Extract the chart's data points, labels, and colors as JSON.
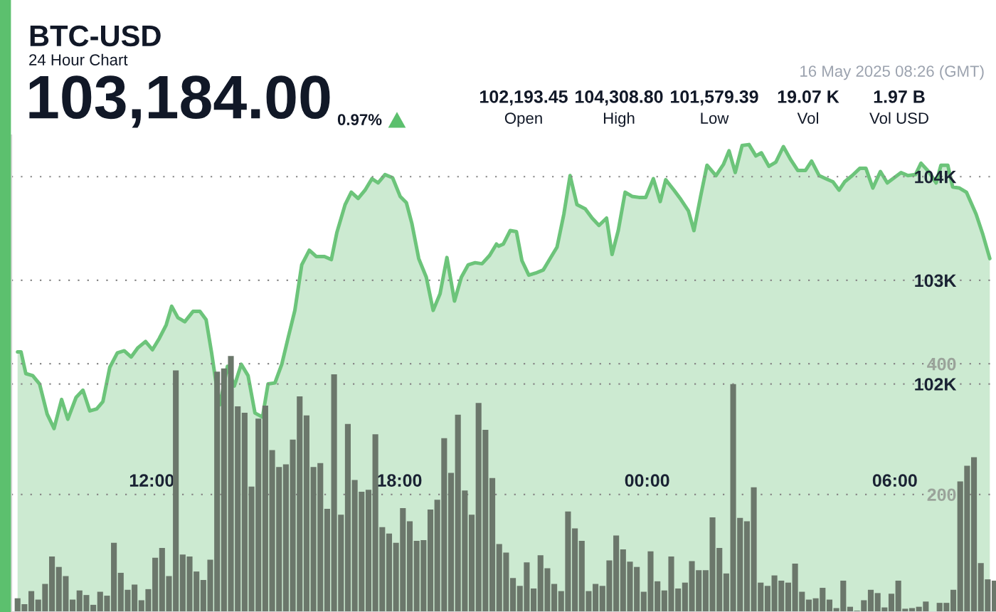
{
  "chart_data": {
    "type": "area",
    "title": "BTC-USD",
    "subtitle": "24 Hour Chart",
    "annotations": [
      "103,184.00",
      "0.97%",
      "102,193.45",
      "Open",
      "104,308.80",
      "High",
      "101,579.39",
      "Low",
      "19.07 K",
      "Vol",
      "1.97 B",
      "Vol USD",
      "16 May 2025 08:26 (GMT)"
    ],
    "xlim": [
      "2025-05-15T08:36",
      "2025-05-16T08:27"
    ],
    "xticks": [
      {
        "value": "2025-05-15T12:00",
        "label": "12:00"
      },
      {
        "value": "2025-05-15T18:00",
        "label": "18:00"
      },
      {
        "value": "2025-05-16T00:00",
        "label": "00:00"
      },
      {
        "value": "2025-05-16T06:00",
        "label": "06:00"
      }
    ],
    "ylim": [
      99800,
      104400
    ],
    "yticks": [
      {
        "value": 102000,
        "label": "102K"
      },
      {
        "value": 103000,
        "label": "103K"
      },
      {
        "value": 104000,
        "label": "104K"
      }
    ],
    "y2lim": [
      20,
      750
    ],
    "y2ticks": [
      200,
      400
    ],
    "grid": "y",
    "series": [
      {
        "color": "#6cc47a",
        "x": [
          "2025-05-15T08:45",
          "2025-05-15T08:50",
          "2025-05-15T08:57",
          "2025-05-15T09:07",
          "2025-05-15T09:17",
          "2025-05-15T09:28",
          "2025-05-15T09:38",
          "2025-05-15T09:49",
          "2025-05-15T09:58",
          "2025-05-15T10:10",
          "2025-05-15T10:20",
          "2025-05-15T10:30",
          "2025-05-15T10:40",
          "2025-05-15T10:49",
          "2025-05-15T10:59",
          "2025-05-15T11:10",
          "2025-05-15T11:20",
          "2025-05-15T11:30",
          "2025-05-15T11:40",
          "2025-05-15T11:51",
          "2025-05-15T12:01",
          "2025-05-15T12:11",
          "2025-05-15T12:21",
          "2025-05-15T12:29",
          "2025-05-15T12:38",
          "2025-05-15T12:48",
          "2025-05-15T13:00",
          "2025-05-15T13:10",
          "2025-05-15T13:19",
          "2025-05-15T13:27",
          "2025-05-15T13:33",
          "2025-05-15T13:39",
          "2025-05-15T13:50",
          "2025-05-15T14:00",
          "2025-05-15T14:10",
          "2025-05-15T14:20",
          "2025-05-15T14:30",
          "2025-05-15T14:41",
          "2025-05-15T14:49",
          "2025-05-15T14:59",
          "2025-05-15T15:09",
          "2025-05-15T15:18",
          "2025-05-15T15:28",
          "2025-05-15T15:38",
          "2025-05-15T15:49",
          "2025-05-15T15:59",
          "2025-05-15T16:11",
          "2025-05-15T16:21",
          "2025-05-15T16:29",
          "2025-05-15T16:41",
          "2025-05-15T16:50",
          "2025-05-15T17:00",
          "2025-05-15T17:10",
          "2025-05-15T17:20",
          "2025-05-15T17:29",
          "2025-05-15T17:39",
          "2025-05-15T17:50",
          "2025-05-15T18:01",
          "2025-05-15T18:10",
          "2025-05-15T18:18",
          "2025-05-15T18:28",
          "2025-05-15T18:39",
          "2025-05-15T18:49",
          "2025-05-15T18:59",
          "2025-05-15T19:09",
          "2025-05-15T19:20",
          "2025-05-15T19:30",
          "2025-05-15T19:40",
          "2025-05-15T19:50",
          "2025-05-15T20:00",
          "2025-05-15T20:11",
          "2025-05-15T20:21",
          "2025-05-15T20:24",
          "2025-05-15T20:31",
          "2025-05-15T20:41",
          "2025-05-15T20:50",
          "2025-05-15T20:58",
          "2025-05-15T21:08",
          "2025-05-15T21:18",
          "2025-05-15T21:29",
          "2025-05-15T21:39",
          "2025-05-15T21:49",
          "2025-05-15T21:59",
          "2025-05-15T22:08",
          "2025-05-15T22:18",
          "2025-05-15T22:30",
          "2025-05-15T22:40",
          "2025-05-15T22:50",
          "2025-05-15T23:01",
          "2025-05-15T23:09",
          "2025-05-15T23:18",
          "2025-05-15T23:28",
          "2025-05-15T23:38",
          "2025-05-15T23:48",
          "2025-05-15T23:58",
          "2025-05-16T00:09",
          "2025-05-16T00:19",
          "2025-05-16T00:27",
          "2025-05-16T00:39",
          "2025-05-16T00:49",
          "2025-05-16T01:00",
          "2025-05-16T01:08",
          "2025-05-16T01:18",
          "2025-05-16T01:27",
          "2025-05-16T01:40",
          "2025-05-16T01:51",
          "2025-05-16T01:59",
          "2025-05-16T02:08",
          "2025-05-16T02:18",
          "2025-05-16T02:28",
          "2025-05-16T02:38",
          "2025-05-16T02:46",
          "2025-05-16T02:57",
          "2025-05-16T03:07",
          "2025-05-16T03:18",
          "2025-05-16T03:29",
          "2025-05-16T03:39",
          "2025-05-16T03:50",
          "2025-05-16T03:59",
          "2025-05-16T04:10",
          "2025-05-16T04:20",
          "2025-05-16T04:30",
          "2025-05-16T04:39",
          "2025-05-16T04:47",
          "2025-05-16T04:58",
          "2025-05-16T05:09",
          "2025-05-16T05:18",
          "2025-05-16T05:28",
          "2025-05-16T05:39",
          "2025-05-16T05:49",
          "2025-05-16T05:59",
          "2025-05-16T06:09",
          "2025-05-16T06:19",
          "2025-05-16T06:30",
          "2025-05-16T06:38",
          "2025-05-16T06:49",
          "2025-05-16T07:00",
          "2025-05-16T07:07",
          "2025-05-16T07:17",
          "2025-05-16T07:24",
          "2025-05-16T07:34",
          "2025-05-16T07:44",
          "2025-05-16T07:58",
          "2025-05-16T08:08",
          "2025-05-16T08:18"
        ],
        "values": [
          102310,
          102310,
          102100,
          102080,
          102000,
          101710,
          101570,
          101850,
          101660,
          101870,
          101940,
          101740,
          101760,
          101830,
          102160,
          102300,
          102320,
          102260,
          102350,
          102410,
          102330,
          102440,
          102570,
          102750,
          102640,
          102600,
          102700,
          102700,
          102620,
          102300,
          102030,
          101800,
          102170,
          101980,
          102190,
          102080,
          101720,
          101680,
          102000,
          102010,
          102190,
          102440,
          102710,
          103150,
          103290,
          103230,
          103230,
          103200,
          103460,
          103730,
          103850,
          103790,
          103870,
          103980,
          103940,
          104020,
          103990,
          103810,
          103750,
          103550,
          103210,
          103030,
          102710,
          102870,
          103220,
          102800,
          103030,
          103150,
          103170,
          103160,
          103240,
          103350,
          103330,
          103350,
          103480,
          103470,
          103190,
          103050,
          103070,
          103100,
          103210,
          103320,
          103640,
          104010,
          103730,
          103690,
          103600,
          103530,
          103600,
          103250,
          103480,
          103850,
          103810,
          103800,
          103800,
          103980,
          103760,
          103970,
          103870,
          103780,
          103670,
          103480,
          103820,
          104110,
          104010,
          104120,
          104250,
          104040,
          104300,
          104310,
          104200,
          104230,
          104100,
          104140,
          104290,
          104160,
          104060,
          104060,
          104150,
          104010,
          103980,
          103950,
          103870,
          103950,
          104010,
          104080,
          104080,
          103890,
          104050,
          103940,
          103990,
          104040,
          104010,
          104020,
          104130,
          104050,
          103940,
          104110,
          104110,
          103900,
          103890,
          103850,
          103640,
          103440,
          103210
        ]
      },
      {
        "type": "bar",
        "axis": "y2",
        "color": "#6b776b",
        "x": [
          "2025-05-15T08:45",
          "2025-05-15T08:55",
          "2025-05-15T09:05",
          "2025-05-15T09:15",
          "2025-05-15T09:25",
          "2025-05-15T09:35",
          "2025-05-15T09:45",
          "2025-05-15T09:55",
          "2025-05-15T10:05",
          "2025-05-15T10:15",
          "2025-05-15T10:25",
          "2025-05-15T10:35",
          "2025-05-15T10:45",
          "2025-05-15T10:55",
          "2025-05-15T11:05",
          "2025-05-15T11:15",
          "2025-05-15T11:25",
          "2025-05-15T11:35",
          "2025-05-15T11:45",
          "2025-05-15T11:55",
          "2025-05-15T12:05",
          "2025-05-15T12:15",
          "2025-05-15T12:25",
          "2025-05-15T12:35",
          "2025-05-15T12:45",
          "2025-05-15T12:55",
          "2025-05-15T13:05",
          "2025-05-15T13:15",
          "2025-05-15T13:25",
          "2025-05-15T13:35",
          "2025-05-15T13:45",
          "2025-05-15T13:55",
          "2025-05-15T14:05",
          "2025-05-15T14:15",
          "2025-05-15T14:25",
          "2025-05-15T14:35",
          "2025-05-15T14:45",
          "2025-05-15T14:55",
          "2025-05-15T15:05",
          "2025-05-15T15:15",
          "2025-05-15T15:25",
          "2025-05-15T15:35",
          "2025-05-15T15:45",
          "2025-05-15T15:55",
          "2025-05-15T16:05",
          "2025-05-15T16:15",
          "2025-05-15T16:25",
          "2025-05-15T16:35",
          "2025-05-15T16:45",
          "2025-05-15T16:55",
          "2025-05-15T17:05",
          "2025-05-15T17:15",
          "2025-05-15T17:25",
          "2025-05-15T17:35",
          "2025-05-15T17:45",
          "2025-05-15T17:55",
          "2025-05-15T18:05",
          "2025-05-15T18:15",
          "2025-05-15T18:25",
          "2025-05-15T18:35",
          "2025-05-15T18:45",
          "2025-05-15T18:55",
          "2025-05-15T19:05",
          "2025-05-15T19:15",
          "2025-05-15T19:25",
          "2025-05-15T19:35",
          "2025-05-15T19:45",
          "2025-05-15T19:55",
          "2025-05-15T20:05",
          "2025-05-15T20:15",
          "2025-05-15T20:25",
          "2025-05-15T20:35",
          "2025-05-15T20:45",
          "2025-05-15T20:55",
          "2025-05-15T21:05",
          "2025-05-15T21:15",
          "2025-05-15T21:25",
          "2025-05-15T21:35",
          "2025-05-15T21:45",
          "2025-05-15T21:55",
          "2025-05-15T22:05",
          "2025-05-15T22:15",
          "2025-05-15T22:25",
          "2025-05-15T22:35",
          "2025-05-15T22:45",
          "2025-05-15T22:55",
          "2025-05-15T23:05",
          "2025-05-15T23:15",
          "2025-05-15T23:25",
          "2025-05-15T23:35",
          "2025-05-15T23:45",
          "2025-05-15T23:55",
          "2025-05-16T00:05",
          "2025-05-16T00:15",
          "2025-05-16T00:25",
          "2025-05-16T00:35",
          "2025-05-16T00:45",
          "2025-05-16T00:55",
          "2025-05-16T01:05",
          "2025-05-16T01:15",
          "2025-05-16T01:25",
          "2025-05-16T01:35",
          "2025-05-16T01:45",
          "2025-05-16T01:55",
          "2025-05-16T02:05",
          "2025-05-16T02:15",
          "2025-05-16T02:25",
          "2025-05-16T02:35",
          "2025-05-16T02:45",
          "2025-05-16T02:55",
          "2025-05-16T03:05",
          "2025-05-16T03:15",
          "2025-05-16T03:25",
          "2025-05-16T03:35",
          "2025-05-16T03:45",
          "2025-05-16T03:55",
          "2025-05-16T04:05",
          "2025-05-16T04:15",
          "2025-05-16T04:25",
          "2025-05-16T04:35",
          "2025-05-16T04:45",
          "2025-05-16T04:55",
          "2025-05-16T05:05",
          "2025-05-16T05:15",
          "2025-05-16T05:25",
          "2025-05-16T05:35",
          "2025-05-16T05:45",
          "2025-05-16T05:55",
          "2025-05-16T06:05",
          "2025-05-16T06:15",
          "2025-05-16T06:25",
          "2025-05-16T06:35",
          "2025-05-16T06:45",
          "2025-05-16T06:55",
          "2025-05-16T07:05",
          "2025-05-16T07:15",
          "2025-05-16T07:25",
          "2025-05-16T07:35",
          "2025-05-16T07:45",
          "2025-05-16T07:55",
          "2025-05-16T08:05",
          "2025-05-16T08:15",
          "2025-05-16T08:25"
        ],
        "values": [
          41,
          32,
          52,
          39,
          63,
          105,
          89,
          75,
          39,
          53,
          46,
          31,
          51,
          45,
          126,
          80,
          54,
          62,
          38,
          55,
          103,
          118,
          75,
          390,
          108,
          105,
          82,
          69,
          100,
          388,
          393,
          412,
          335,
          325,
          212,
          316,
          336,
          268,
          242,
          246,
          284,
          350,
          321,
          242,
          248,
          178,
          384,
          169,
          308,
          222,
          204,
          207,
          292,
          150,
          140,
          126,
          179,
          159,
          129,
          130,
          177,
          192,
          286,
          233,
          322,
          206,
          169,
          340,
          299,
          225,
          124,
          111,
          72,
          60,
          96,
          56,
          107,
          87,
          63,
          52,
          174,
          148,
          129,
          52,
          63,
          60,
          99,
          137,
          116,
          97,
          89,
          51,
          113,
          67,
          53,
          105,
          56,
          65,
          98,
          84,
          84,
          165,
          118,
          79,
          369,
          164,
          159,
          211,
          65,
          60,
          76,
          68,
          65,
          94,
          51,
          39,
          41,
          57,
          39,
          26,
          68,
          28,
          22,
          38,
          54,
          49,
          27,
          48,
          68,
          25,
          26,
          28,
          36,
          null,
          34,
          34,
          54,
          220,
          244,
          257,
          95,
          70,
          68
        ]
      }
    ]
  }
}
